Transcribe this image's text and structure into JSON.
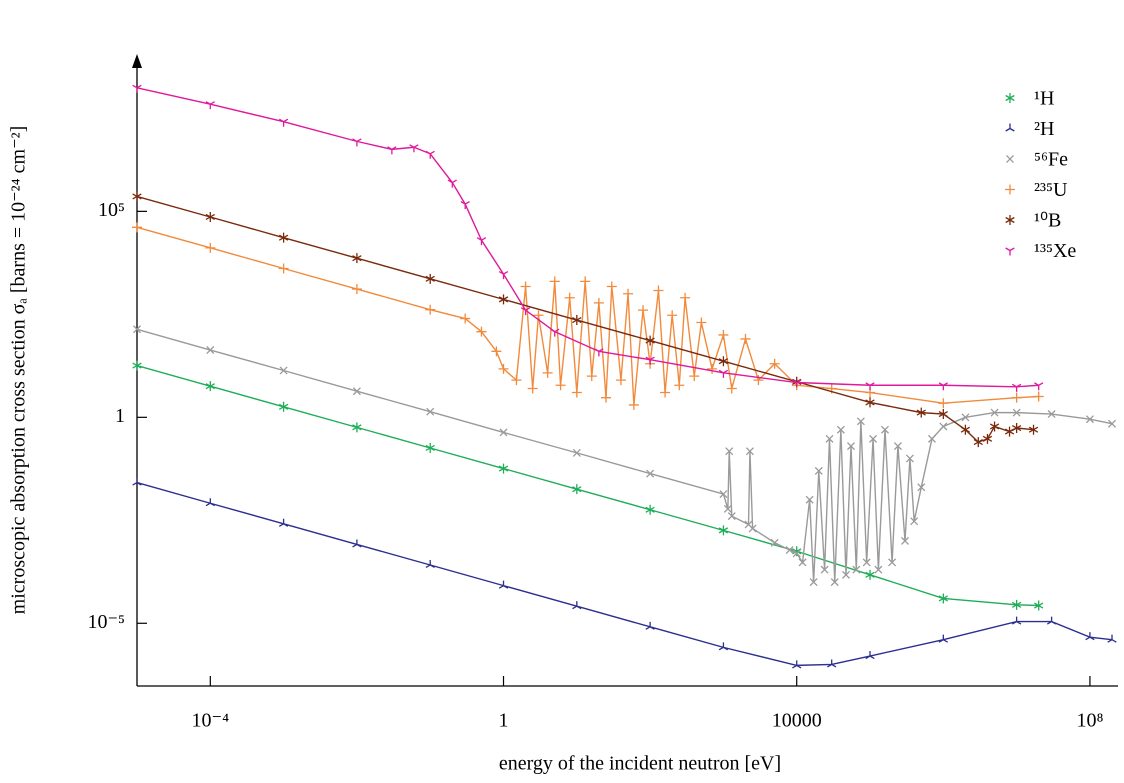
{
  "chart_data": {
    "type": "line",
    "xlabel": "energy of the incident neutron [eV]",
    "ylabel": "microscopic absorption cross section σₐ [barns = 10⁻²⁴ cm⁻²]",
    "xscale": "log",
    "yscale": "log",
    "xlim": [
      1e-05,
      200000000
    ],
    "ylim": [
      3e-07,
      500000000
    ],
    "xticks": [
      {
        "value": 0.0001,
        "label": "10⁻⁴"
      },
      1,
      10000,
      {
        "value": 100000000,
        "label": "10⁸"
      }
    ],
    "yticks": [
      {
        "value": 1e-05,
        "label": "10⁻⁵"
      },
      1,
      {
        "value": 100000,
        "label": "10⁵"
      }
    ],
    "legend": "upper right",
    "series": [
      {
        "name": "¹H",
        "color": "#1fae58",
        "marker": "asterisk",
        "x": [
          1e-05,
          0.0001,
          0.001,
          0.01,
          0.1,
          1,
          10,
          100,
          1000,
          10000,
          100000,
          1000000,
          10000000,
          20000000
        ],
        "values": [
          18,
          5.7,
          1.8,
          0.57,
          0.18,
          0.057,
          0.018,
          0.0057,
          0.0018,
          0.00056,
          0.00015,
          4e-05,
          2.8e-05,
          2.7e-05
        ]
      },
      {
        "name": "²H",
        "color": "#2b2f8f",
        "marker": "tri_down",
        "x": [
          1e-05,
          0.0001,
          0.001,
          0.01,
          0.1,
          1,
          10,
          100,
          1000,
          10000,
          30000,
          100000,
          1000000,
          10000000,
          30000000,
          100000000,
          200000000
        ],
        "values": [
          0.026,
          0.0082,
          0.0026,
          0.00082,
          0.00026,
          8.2e-05,
          2.6e-05,
          8.2e-06,
          2.6e-06,
          9.5e-07,
          1e-06,
          1.6e-06,
          4e-06,
          1.1e-05,
          1.1e-05,
          4.6e-06,
          4e-06
        ]
      },
      {
        "name": "⁵⁶Fe",
        "color": "#9a9a9a",
        "marker": "x",
        "x": [
          1e-05,
          0.0001,
          0.001,
          0.01,
          0.1,
          1,
          10,
          100,
          1000,
          1150,
          1200,
          1300,
          2200,
          2300,
          2500,
          5000,
          8000,
          10000,
          12000,
          15000,
          17000,
          20000,
          24000,
          28000,
          33000,
          40000,
          47000,
          55000,
          65000,
          75000,
          90000,
          110000,
          130000,
          160000,
          200000,
          240000,
          300000,
          350000,
          400000,
          500000,
          700000,
          1000000,
          2000000,
          5000000,
          10000000,
          30000000,
          100000000,
          200000000
        ],
        "values": [
          137,
          43,
          13.7,
          4.3,
          1.37,
          0.43,
          0.137,
          0.043,
          0.0137,
          0.006,
          0.15,
          0.004,
          0.0025,
          0.15,
          0.002,
          0.0009,
          0.0006,
          0.0005,
          0.0003,
          0.01,
          0.0001,
          0.05,
          0.0002,
          0.3,
          0.0001,
          0.5,
          0.00015,
          0.2,
          0.0002,
          0.8,
          0.0003,
          0.3,
          0.0002,
          0.5,
          0.0003,
          0.2,
          0.001,
          0.1,
          0.003,
          0.02,
          0.3,
          0.6,
          1,
          1.3,
          1.3,
          1.2,
          0.9,
          0.7
        ]
      },
      {
        "name": "²³⁵U",
        "color": "#f28a3c",
        "marker": "plus",
        "x": [
          1e-05,
          0.0001,
          0.001,
          0.01,
          0.1,
          0.3,
          0.5,
          0.8,
          1,
          1.5,
          2,
          2.5,
          3,
          4,
          5,
          6,
          8,
          10,
          13,
          16,
          20,
          25,
          30,
          40,
          50,
          60,
          80,
          100,
          130,
          160,
          200,
          250,
          300,
          400,
          500,
          700,
          1000,
          1300,
          2000,
          3000,
          5000,
          10000,
          30000,
          100000,
          1000000,
          10000000,
          20000000
        ],
        "values": [
          41000,
          13000,
          4100,
          1300,
          410,
          250,
          120,
          40,
          15,
          8,
          1500,
          5,
          300,
          12,
          2000,
          6,
          800,
          4,
          2000,
          10,
          600,
          3,
          1500,
          8,
          1000,
          2,
          400,
          20,
          1200,
          4,
          300,
          6,
          800,
          10,
          200,
          15,
          100,
          5,
          80,
          8,
          20,
          6,
          5,
          4,
          2.2,
          3,
          3.2
        ]
      },
      {
        "name": "¹⁰B",
        "color": "#7a2a0c",
        "marker": "star",
        "x": [
          1e-05,
          0.0001,
          0.001,
          0.01,
          0.1,
          1,
          10,
          100,
          1000,
          10000,
          100000,
          500000,
          1000000,
          2000000,
          3000000,
          4000000,
          5000000,
          8000000,
          10000000,
          17000000
        ],
        "values": [
          230000,
          73000,
          23000,
          7300,
          2300,
          730,
          230,
          73,
          23,
          7.3,
          2.3,
          1.3,
          1.2,
          0.5,
          0.25,
          0.3,
          0.6,
          0.45,
          0.55,
          0.5
        ]
      },
      {
        "name": "¹³⁵Xe",
        "color": "#e0189b",
        "marker": "tri_up",
        "x": [
          1e-05,
          0.0001,
          0.001,
          0.01,
          0.03,
          0.06,
          0.1,
          0.2,
          0.3,
          0.5,
          1,
          2,
          5,
          20,
          100,
          1000,
          10000,
          100000,
          1000000,
          10000000,
          20000000
        ],
        "values": [
          100000000,
          40000000,
          15000000,
          5000000,
          3200000,
          3600000,
          2500000,
          500000,
          150000,
          20000,
          3000,
          400,
          120,
          40,
          25,
          12,
          7,
          6,
          6,
          5.5,
          6
        ]
      }
    ]
  }
}
